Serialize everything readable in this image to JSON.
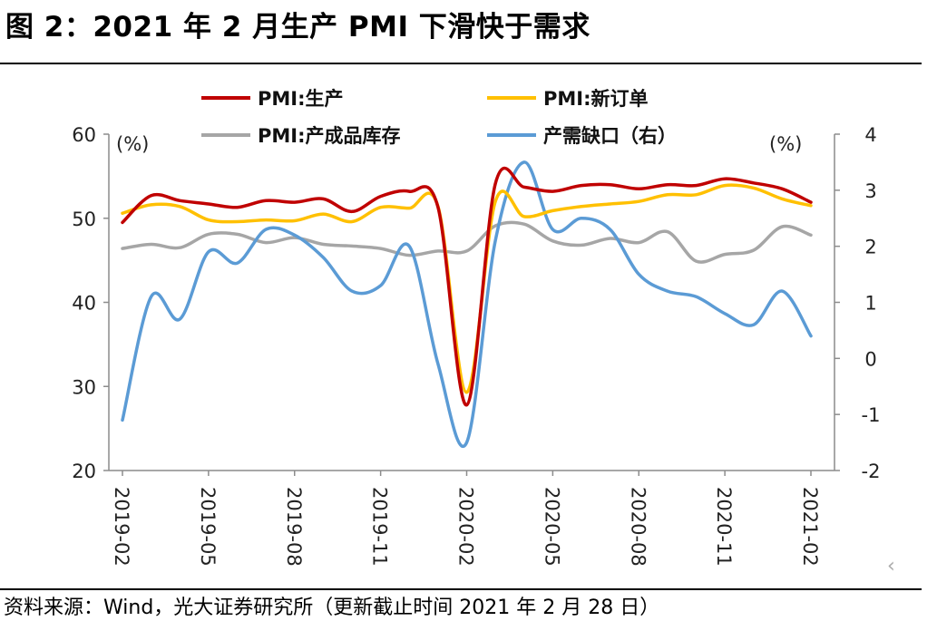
{
  "title": "图 2：2021 年 2 月生产 PMI 下滑快于需求",
  "source": "资料来源：Wind，光大证券研究所（更新截止时间 2021 年 2 月 28 日）",
  "chart_data": {
    "type": "line",
    "title": "图 2：2021 年 2 月生产 PMI 下滑快于需求",
    "left_unit": "(%)",
    "right_unit": "(%)",
    "y_left": {
      "min": 20,
      "max": 60,
      "ticks": [
        "20",
        "30",
        "40",
        "50",
        "60"
      ]
    },
    "y_right": {
      "min": -2,
      "max": 4,
      "ticks": [
        "-2",
        "-1",
        "0",
        "1",
        "2",
        "3",
        "4"
      ]
    },
    "x_ticks": [
      "2019-02",
      "2019-05",
      "2019-08",
      "2019-11",
      "2020-02",
      "2020-05",
      "2020-08",
      "2020-11",
      "2021-02"
    ],
    "x": [
      "2019-02",
      "2019-03",
      "2019-04",
      "2019-05",
      "2019-06",
      "2019-07",
      "2019-08",
      "2019-09",
      "2019-10",
      "2019-11",
      "2019-12",
      "2020-01",
      "2020-02",
      "2020-03",
      "2020-04",
      "2020-05",
      "2020-06",
      "2020-07",
      "2020-08",
      "2020-09",
      "2020-10",
      "2020-11",
      "2020-12",
      "2021-01",
      "2021-02"
    ],
    "legend_placement": "top",
    "grid": false,
    "series": [
      {
        "name": "PMI:生产",
        "axis": "left",
        "color": "#c00000",
        "values": [
          49.5,
          52.7,
          52.1,
          51.7,
          51.3,
          52.1,
          51.9,
          52.3,
          50.8,
          52.6,
          53.2,
          51.3,
          27.8,
          54.1,
          53.7,
          53.2,
          53.9,
          54.0,
          53.5,
          54.0,
          53.9,
          54.7,
          54.2,
          53.5,
          51.9
        ]
      },
      {
        "name": "PMI:新订单",
        "axis": "left",
        "color": "#ffc000",
        "values": [
          50.6,
          51.6,
          51.4,
          49.8,
          49.6,
          49.8,
          49.7,
          50.5,
          49.6,
          51.3,
          51.2,
          51.4,
          29.3,
          52.0,
          50.2,
          50.9,
          51.4,
          51.7,
          52.0,
          52.8,
          52.8,
          53.9,
          53.6,
          52.3,
          51.5
        ]
      },
      {
        "name": "PMI:产成品库存",
        "axis": "left",
        "color": "#a6a6a6",
        "values": [
          46.4,
          46.9,
          46.5,
          48.1,
          48.1,
          47.1,
          47.7,
          46.9,
          46.7,
          46.4,
          45.6,
          46.1,
          46.1,
          49.1,
          49.3,
          47.3,
          46.8,
          47.6,
          47.1,
          48.4,
          44.9,
          45.7,
          46.2,
          49.0,
          48.0
        ]
      },
      {
        "name": "产需缺口（右）",
        "axis": "right",
        "color": "#5b9bd5",
        "values": [
          -1.1,
          1.1,
          0.7,
          1.9,
          1.7,
          2.3,
          2.2,
          1.8,
          1.2,
          1.3,
          2.0,
          -0.1,
          -1.5,
          2.1,
          3.5,
          2.3,
          2.5,
          2.3,
          1.5,
          1.2,
          1.1,
          0.8,
          0.6,
          1.2,
          0.4
        ]
      }
    ]
  }
}
